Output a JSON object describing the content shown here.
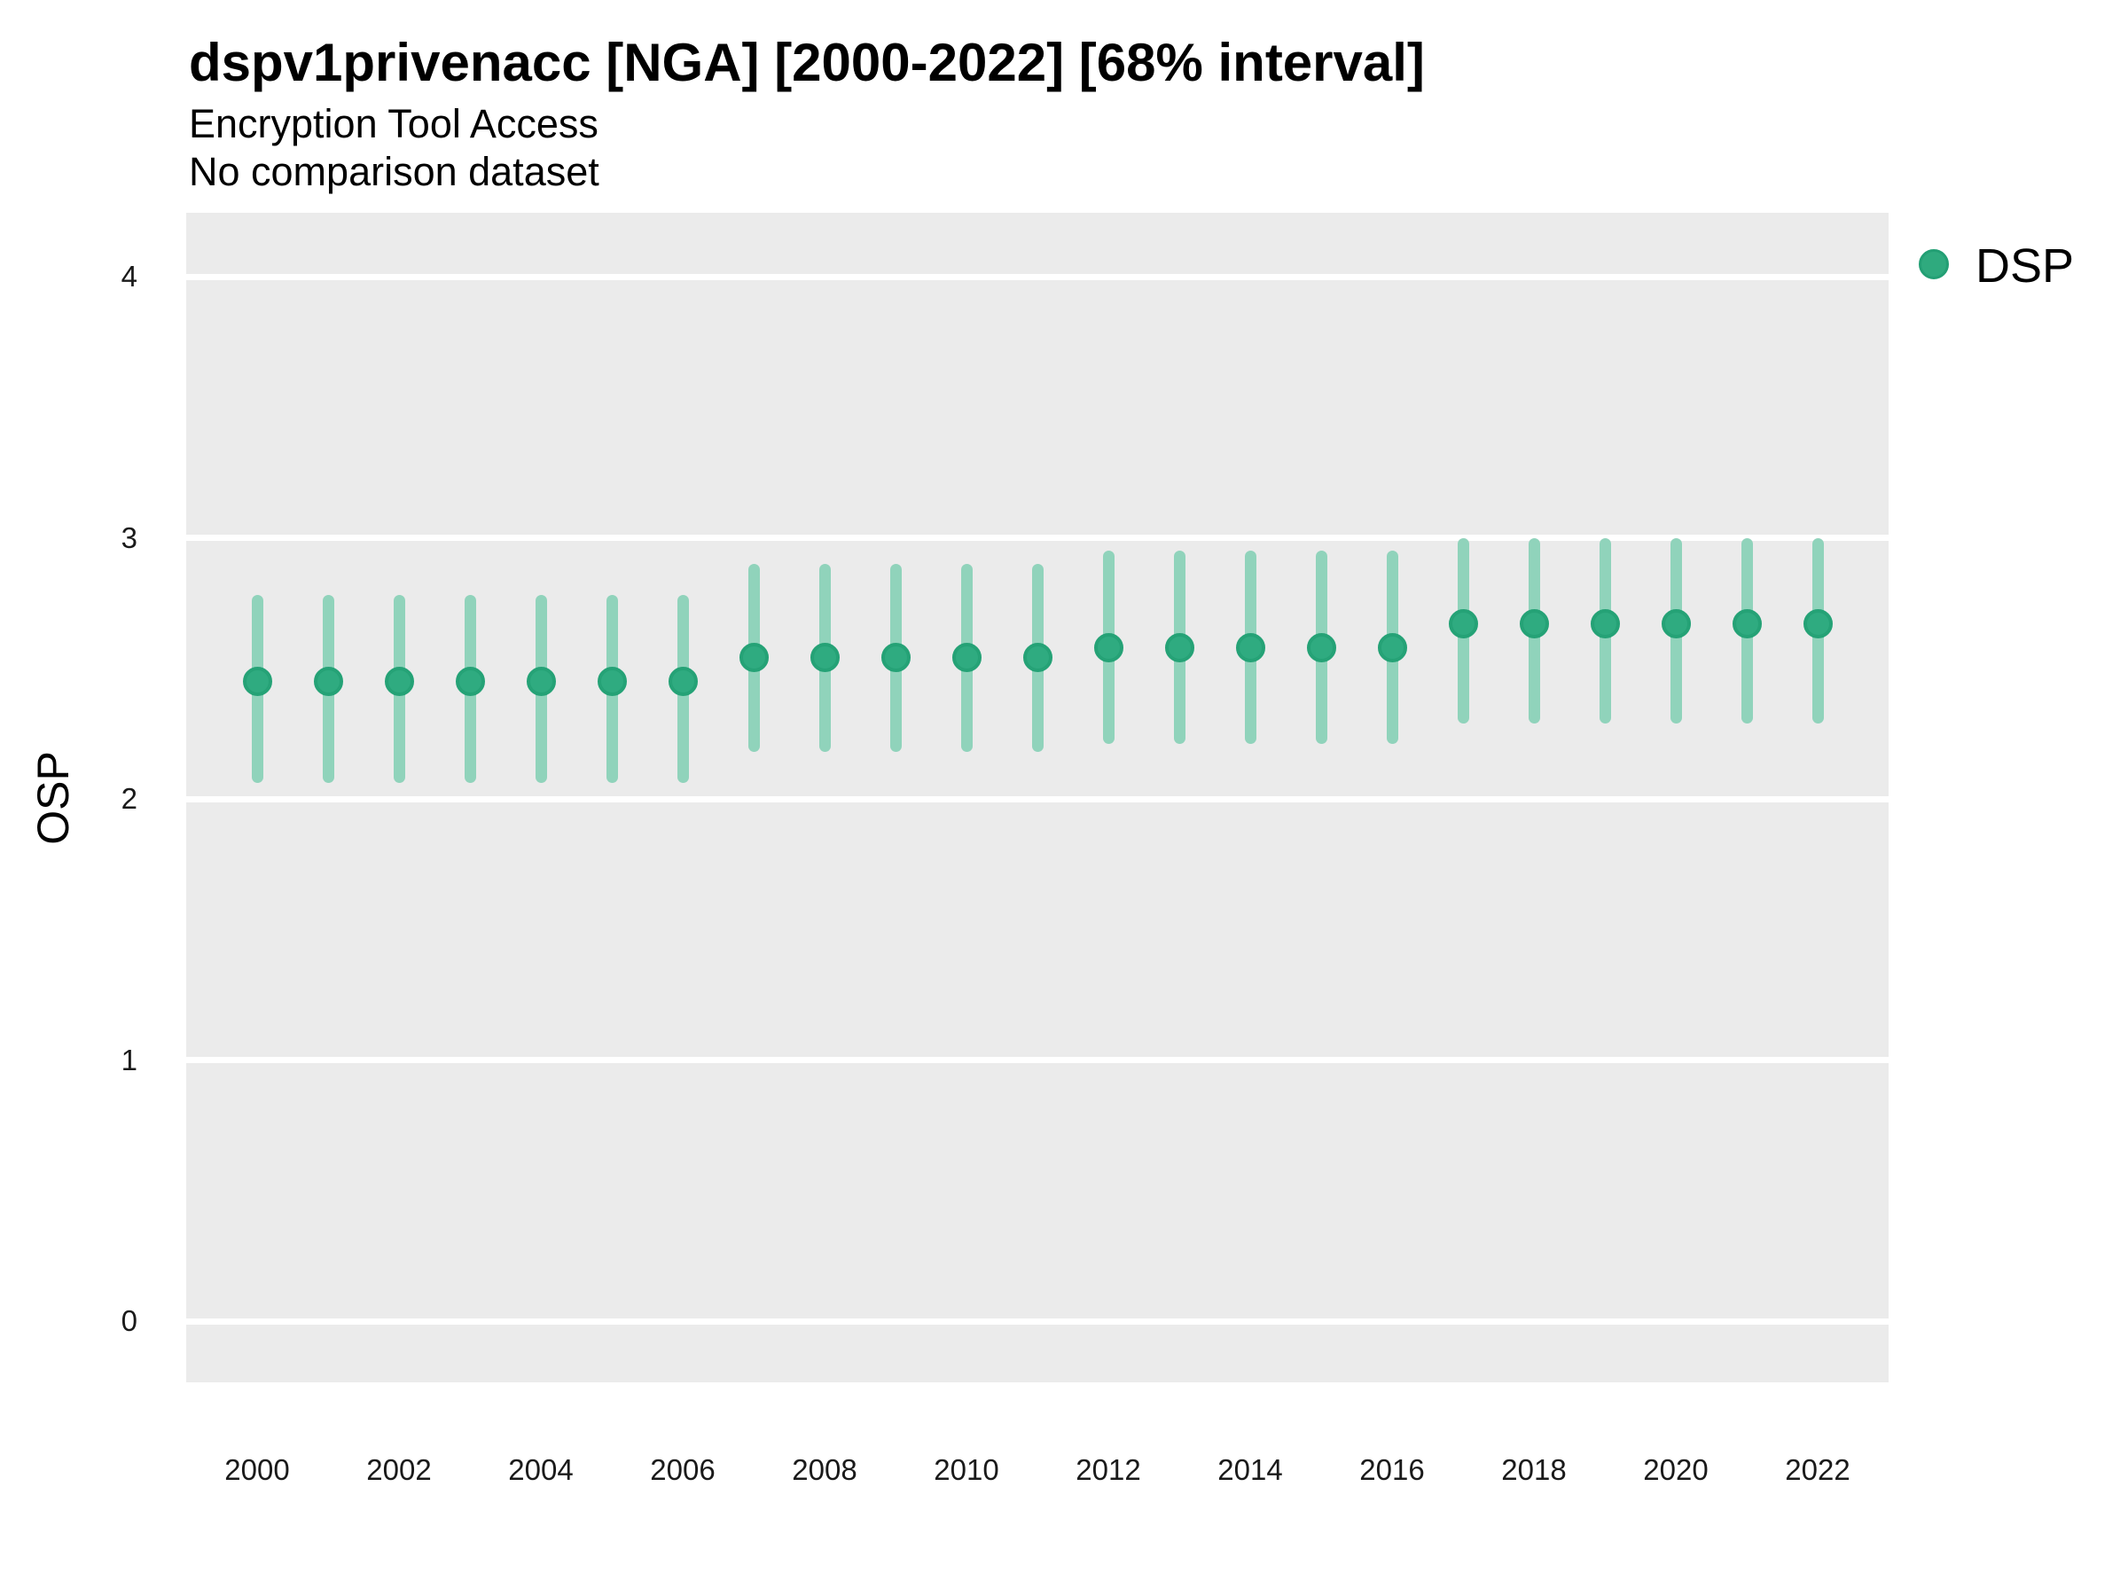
{
  "header": {
    "title": "dspv1privenacc [NGA] [2000-2022] [68% interval]",
    "subtitle": "Encryption Tool Access",
    "subtitle2": "No comparison dataset"
  },
  "legend": {
    "label": "DSP",
    "marker_color": "#2faa7e",
    "position": "right-top"
  },
  "axes": {
    "y_title": "OSP",
    "y_ticks": [
      4,
      3,
      2,
      1,
      0
    ],
    "x_ticks": [
      2000,
      2002,
      2004,
      2006,
      2008,
      2010,
      2012,
      2014,
      2016,
      2018,
      2020,
      2022
    ]
  },
  "colors": {
    "panel_background": "#EBEBEB",
    "gridline": "#ffffff",
    "point_fill": "#2FAB80",
    "point_border": "#25A276",
    "interval_bar": "#90D3BB",
    "axis_text": "#1a1a1a",
    "title_text": "#000000"
  },
  "chart_data": {
    "type": "scatter",
    "title": "dspv1privenacc [NGA] [2000-2022] [68% interval]",
    "subtitle": "Encryption Tool Access",
    "note": "No comparison dataset",
    "interval": "68%",
    "xlabel": "",
    "ylabel": "OSP",
    "ylim": [
      0,
      4
    ],
    "x_range": [
      2000,
      2022
    ],
    "grid": "horizontal-major-only",
    "legend_position": "right-top",
    "series": [
      {
        "name": "DSP",
        "points": [
          {
            "x": 2000,
            "y": 2.45,
            "lo": 2.06,
            "hi": 2.78
          },
          {
            "x": 2001,
            "y": 2.45,
            "lo": 2.06,
            "hi": 2.78
          },
          {
            "x": 2002,
            "y": 2.45,
            "lo": 2.06,
            "hi": 2.78
          },
          {
            "x": 2003,
            "y": 2.45,
            "lo": 2.06,
            "hi": 2.78
          },
          {
            "x": 2004,
            "y": 2.45,
            "lo": 2.06,
            "hi": 2.78
          },
          {
            "x": 2005,
            "y": 2.45,
            "lo": 2.06,
            "hi": 2.78
          },
          {
            "x": 2006,
            "y": 2.45,
            "lo": 2.06,
            "hi": 2.78
          },
          {
            "x": 2007,
            "y": 2.54,
            "lo": 2.18,
            "hi": 2.9
          },
          {
            "x": 2008,
            "y": 2.54,
            "lo": 2.18,
            "hi": 2.9
          },
          {
            "x": 2009,
            "y": 2.54,
            "lo": 2.18,
            "hi": 2.9
          },
          {
            "x": 2010,
            "y": 2.54,
            "lo": 2.18,
            "hi": 2.9
          },
          {
            "x": 2011,
            "y": 2.54,
            "lo": 2.18,
            "hi": 2.9
          },
          {
            "x": 2012,
            "y": 2.58,
            "lo": 2.21,
            "hi": 2.95
          },
          {
            "x": 2013,
            "y": 2.58,
            "lo": 2.21,
            "hi": 2.95
          },
          {
            "x": 2014,
            "y": 2.58,
            "lo": 2.21,
            "hi": 2.95
          },
          {
            "x": 2015,
            "y": 2.58,
            "lo": 2.21,
            "hi": 2.95
          },
          {
            "x": 2016,
            "y": 2.58,
            "lo": 2.21,
            "hi": 2.95
          },
          {
            "x": 2017,
            "y": 2.67,
            "lo": 2.29,
            "hi": 3.0
          },
          {
            "x": 2018,
            "y": 2.67,
            "lo": 2.29,
            "hi": 3.0
          },
          {
            "x": 2019,
            "y": 2.67,
            "lo": 2.29,
            "hi": 3.0
          },
          {
            "x": 2020,
            "y": 2.67,
            "lo": 2.29,
            "hi": 3.0
          },
          {
            "x": 2021,
            "y": 2.67,
            "lo": 2.29,
            "hi": 3.0
          },
          {
            "x": 2022,
            "y": 2.67,
            "lo": 2.29,
            "hi": 3.0
          }
        ]
      }
    ]
  }
}
